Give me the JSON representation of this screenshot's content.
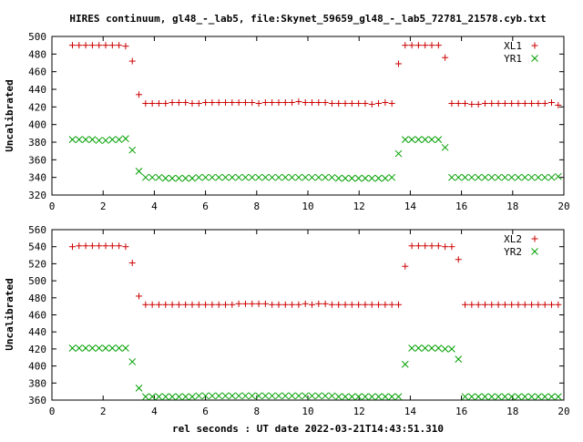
{
  "title": "HIRES continuum, gl48_-_lab5, file:Skynet_59659_gl48_-_lab5_72781_21578.cyb.txt",
  "xlabel": "rel seconds : UT date 2022-03-21T14:43:51.310",
  "colors": {
    "series_a": "#cc0000",
    "series_b": "#00a000",
    "axis": "#000000"
  },
  "chart_data": [
    {
      "type": "scatter",
      "ylabel": "Uncalibrated",
      "xlim": [
        0,
        20
      ],
      "ylim": [
        320,
        500
      ],
      "xticks": [
        0,
        2,
        4,
        6,
        8,
        10,
        12,
        14,
        16,
        18,
        20
      ],
      "yticks": [
        320,
        340,
        360,
        380,
        400,
        420,
        440,
        460,
        480,
        500
      ],
      "legend_position": "top-right",
      "x": [
        0.8,
        1.06,
        1.32,
        1.58,
        1.84,
        2.1,
        2.36,
        2.62,
        2.88,
        3.14,
        3.4,
        3.66,
        3.92,
        4.18,
        4.44,
        4.7,
        4.96,
        5.22,
        5.48,
        5.74,
        6.0,
        6.26,
        6.52,
        6.78,
        7.04,
        7.3,
        7.56,
        7.82,
        8.08,
        8.34,
        8.6,
        8.86,
        9.12,
        9.38,
        9.64,
        9.9,
        10.16,
        10.42,
        10.68,
        10.94,
        11.2,
        11.46,
        11.72,
        11.98,
        12.24,
        12.5,
        12.76,
        13.02,
        13.28,
        13.54,
        13.8,
        14.06,
        14.32,
        14.58,
        14.84,
        15.1,
        15.36,
        15.62,
        15.88,
        16.14,
        16.4,
        16.66,
        16.92,
        17.18,
        17.44,
        17.7,
        17.96,
        18.22,
        18.48,
        18.74,
        19.0,
        19.26,
        19.52,
        19.78
      ],
      "series": [
        {
          "name": "XL1",
          "marker": "plus",
          "values": [
            490,
            490,
            490,
            490,
            490,
            490,
            490,
            490,
            489,
            472,
            434,
            424,
            424,
            424,
            424,
            425,
            425,
            425,
            424,
            424,
            425,
            425,
            425,
            425,
            425,
            425,
            425,
            425,
            424,
            425,
            425,
            425,
            425,
            425,
            426,
            425,
            425,
            425,
            425,
            424,
            424,
            424,
            424,
            424,
            424,
            423,
            424,
            425,
            424,
            469,
            490,
            490,
            490,
            490,
            490,
            490,
            476,
            424,
            424,
            424,
            423,
            423,
            424,
            424,
            424,
            424,
            424,
            424,
            424,
            424,
            424,
            424,
            425,
            422
          ]
        },
        {
          "name": "YR1",
          "marker": "x",
          "values": [
            383,
            383,
            383,
            383,
            382,
            382,
            383,
            383,
            384,
            371,
            347,
            340,
            340,
            340,
            339,
            339,
            339,
            339,
            339,
            340,
            340,
            340,
            340,
            340,
            340,
            340,
            340,
            340,
            340,
            340,
            340,
            340,
            340,
            340,
            340,
            340,
            340,
            340,
            340,
            340,
            339,
            339,
            339,
            339,
            339,
            339,
            339,
            339,
            340,
            367,
            383,
            383,
            383,
            383,
            383,
            383,
            374,
            340,
            340,
            340,
            340,
            340,
            340,
            340,
            340,
            340,
            340,
            340,
            340,
            340,
            340,
            340,
            340,
            341
          ]
        }
      ]
    },
    {
      "type": "scatter",
      "ylabel": "Uncalibrated",
      "xlim": [
        0,
        20
      ],
      "ylim": [
        360,
        560
      ],
      "xticks": [
        0,
        2,
        4,
        6,
        8,
        10,
        12,
        14,
        16,
        18,
        20
      ],
      "yticks": [
        360,
        380,
        400,
        420,
        440,
        460,
        480,
        500,
        520,
        540,
        560
      ],
      "legend_position": "top-right",
      "x": [
        0.8,
        1.06,
        1.32,
        1.58,
        1.84,
        2.1,
        2.36,
        2.62,
        2.88,
        3.14,
        3.4,
        3.66,
        3.92,
        4.18,
        4.44,
        4.7,
        4.96,
        5.22,
        5.48,
        5.74,
        6.0,
        6.26,
        6.52,
        6.78,
        7.04,
        7.3,
        7.56,
        7.82,
        8.08,
        8.34,
        8.6,
        8.86,
        9.12,
        9.38,
        9.64,
        9.9,
        10.16,
        10.42,
        10.68,
        10.94,
        11.2,
        11.46,
        11.72,
        11.98,
        12.24,
        12.5,
        12.76,
        13.02,
        13.28,
        13.54,
        13.8,
        14.06,
        14.32,
        14.58,
        14.84,
        15.1,
        15.36,
        15.62,
        15.88,
        16.14,
        16.4,
        16.66,
        16.92,
        17.18,
        17.44,
        17.7,
        17.96,
        18.22,
        18.48,
        18.74,
        19.0,
        19.26,
        19.52,
        19.78
      ],
      "series": [
        {
          "name": "XL2",
          "marker": "plus",
          "values": [
            540,
            541,
            541,
            541,
            541,
            541,
            541,
            541,
            540,
            521,
            482,
            472,
            472,
            472,
            472,
            472,
            472,
            472,
            472,
            472,
            472,
            472,
            472,
            472,
            472,
            473,
            473,
            473,
            473,
            473,
            472,
            472,
            472,
            472,
            472,
            473,
            472,
            473,
            473,
            472,
            472,
            472,
            472,
            472,
            472,
            472,
            472,
            472,
            472,
            472,
            517,
            541,
            541,
            541,
            541,
            541,
            540,
            540,
            525,
            472,
            472,
            472,
            472,
            472,
            472,
            472,
            472,
            472,
            472,
            472,
            472,
            472,
            472,
            472
          ]
        },
        {
          "name": "YR2",
          "marker": "x",
          "values": [
            421,
            421,
            421,
            421,
            421,
            421,
            421,
            421,
            421,
            405,
            374,
            364,
            364,
            364,
            364,
            364,
            364,
            364,
            364,
            365,
            365,
            365,
            365,
            365,
            365,
            365,
            365,
            365,
            365,
            365,
            365,
            365,
            365,
            365,
            365,
            365,
            365,
            365,
            365,
            365,
            364,
            364,
            364,
            364,
            364,
            364,
            364,
            364,
            364,
            364,
            402,
            421,
            421,
            421,
            421,
            421,
            420,
            420,
            408,
            364,
            364,
            364,
            364,
            364,
            364,
            364,
            364,
            364,
            364,
            364,
            364,
            364,
            364,
            364
          ]
        }
      ]
    }
  ]
}
